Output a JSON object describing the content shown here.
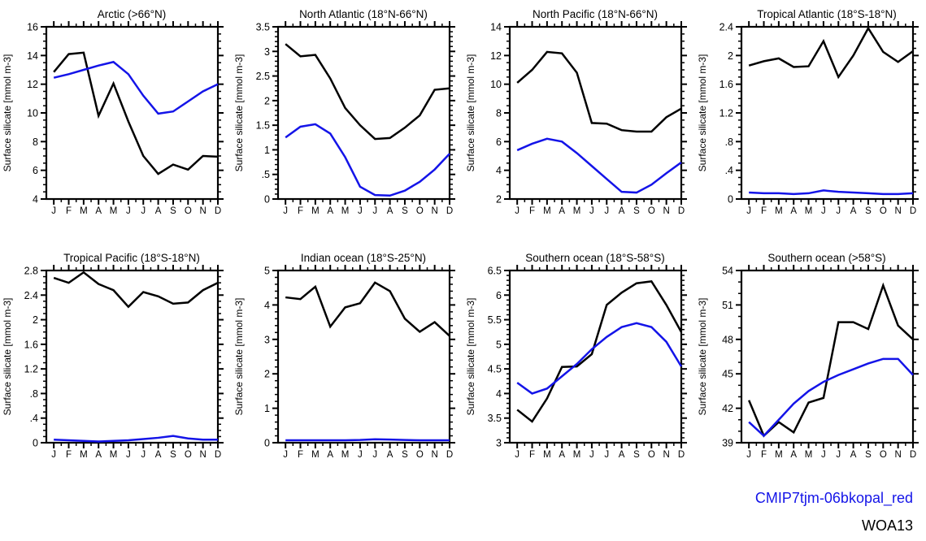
{
  "figure_title": "",
  "legend": {
    "position": "bottom-right",
    "entries": [
      {
        "label": "CMIP7tjm-06bkopal_red",
        "color": "#1414e8"
      },
      {
        "label": "WOA13",
        "color": "#000000"
      }
    ]
  },
  "months": [
    "J",
    "F",
    "M",
    "A",
    "M",
    "J",
    "J",
    "A",
    "S",
    "O",
    "N",
    "D"
  ],
  "chart_data": [
    {
      "type": "line",
      "title": "Arctic (>66°N)",
      "ylabel": "Surface silicate [mmol m-3]",
      "xlabel": "",
      "categories": [
        "J",
        "F",
        "M",
        "A",
        "M",
        "J",
        "J",
        "A",
        "S",
        "O",
        "N",
        "D"
      ],
      "ymin": 4,
      "ymax": 16,
      "ystep": 2,
      "yminor": 3,
      "ytick_labels": [
        "4",
        "6",
        "8",
        "10",
        "12",
        "14",
        "16"
      ],
      "grid": false,
      "series": [
        {
          "name": "WOA13",
          "color": "#000000",
          "values": [
            12.85,
            14.1,
            14.2,
            9.8,
            12.05,
            9.4,
            7.0,
            5.75,
            6.4,
            6.05,
            7.0,
            6.95
          ]
        },
        {
          "name": "CMIP7tjm-06bkopal_red",
          "color": "#1414e8",
          "values": [
            12.45,
            12.7,
            13.0,
            13.3,
            13.55,
            12.7,
            11.2,
            9.95,
            10.1,
            10.8,
            11.5,
            12.0
          ]
        }
      ]
    },
    {
      "type": "line",
      "title": "North Atlantic (18°N-66°N)",
      "ylabel": "Surface silicate [mmol m-3]",
      "xlabel": "",
      "categories": [
        "J",
        "F",
        "M",
        "A",
        "M",
        "J",
        "J",
        "A",
        "S",
        "O",
        "N",
        "D"
      ],
      "ymin": 0,
      "ymax": 3.5,
      "ystep": 0.5,
      "yminor": 4,
      "ytick_labels": [
        "0",
        ".5",
        "1",
        "1.5",
        "2",
        "2.5",
        "3",
        "3.5"
      ],
      "grid": false,
      "series": [
        {
          "name": "WOA13",
          "color": "#000000",
          "values": [
            3.15,
            2.9,
            2.93,
            2.45,
            1.85,
            1.5,
            1.22,
            1.24,
            1.45,
            1.7,
            2.22,
            2.25
          ]
        },
        {
          "name": "CMIP7tjm-06bkopal_red",
          "color": "#1414e8",
          "values": [
            1.25,
            1.47,
            1.52,
            1.33,
            0.85,
            0.25,
            0.08,
            0.07,
            0.17,
            0.35,
            0.6,
            0.92
          ]
        }
      ]
    },
    {
      "type": "line",
      "title": "North Pacific (18°N-66°N)",
      "ylabel": "Surface silicate [mmol m-3]",
      "xlabel": "",
      "categories": [
        "J",
        "F",
        "M",
        "A",
        "M",
        "J",
        "J",
        "A",
        "S",
        "O",
        "N",
        "D"
      ],
      "ymin": 2,
      "ymax": 14,
      "ystep": 2,
      "yminor": 3,
      "ytick_labels": [
        "2",
        "4",
        "6",
        "8",
        "10",
        "12",
        "14"
      ],
      "grid": false,
      "series": [
        {
          "name": "WOA13",
          "color": "#000000",
          "values": [
            10.1,
            11.0,
            12.25,
            12.15,
            10.8,
            7.3,
            7.25,
            6.8,
            6.7,
            6.7,
            7.7,
            8.3
          ]
        },
        {
          "name": "CMIP7tjm-06bkopal_red",
          "color": "#1414e8",
          "values": [
            5.4,
            5.85,
            6.2,
            6.0,
            5.2,
            4.3,
            3.4,
            2.5,
            2.45,
            3.0,
            3.8,
            4.55
          ]
        }
      ]
    },
    {
      "type": "line",
      "title": "Tropical Atlantic (18°S-18°N)",
      "ylabel": "Surface silicate [mmol m-3]",
      "xlabel": "",
      "categories": [
        "J",
        "F",
        "M",
        "A",
        "M",
        "J",
        "J",
        "A",
        "S",
        "O",
        "N",
        "D"
      ],
      "ymin": 0,
      "ymax": 2.4,
      "ystep": 0.4,
      "yminor": 3,
      "ytick_labels": [
        "0",
        ".4",
        ".8",
        "1.2",
        "1.6",
        "2",
        "2.4"
      ],
      "grid": false,
      "series": [
        {
          "name": "WOA13",
          "color": "#000000",
          "values": [
            1.86,
            1.92,
            1.96,
            1.84,
            1.85,
            2.2,
            1.7,
            2.0,
            2.38,
            2.05,
            1.91,
            2.06
          ]
        },
        {
          "name": "CMIP7tjm-06bkopal_red",
          "color": "#1414e8",
          "values": [
            0.09,
            0.08,
            0.08,
            0.07,
            0.08,
            0.12,
            0.1,
            0.09,
            0.08,
            0.07,
            0.07,
            0.08
          ]
        }
      ]
    },
    {
      "type": "line",
      "title": "Tropical Pacific (18°S-18°N)",
      "ylabel": "Surface silicate [mmol m-3]",
      "xlabel": "",
      "categories": [
        "J",
        "F",
        "M",
        "A",
        "M",
        "J",
        "J",
        "A",
        "S",
        "O",
        "N",
        "D"
      ],
      "ymin": 0,
      "ymax": 2.8,
      "ystep": 0.4,
      "yminor": 3,
      "ytick_labels": [
        "0",
        ".4",
        ".8",
        "1.2",
        "1.6",
        "2",
        "2.4",
        "2.8"
      ],
      "grid": false,
      "series": [
        {
          "name": "WOA13",
          "color": "#000000",
          "values": [
            2.68,
            2.6,
            2.77,
            2.58,
            2.48,
            2.21,
            2.45,
            2.38,
            2.26,
            2.28,
            2.48,
            2.6
          ]
        },
        {
          "name": "CMIP7tjm-06bkopal_red",
          "color": "#1414e8",
          "values": [
            0.05,
            0.04,
            0.03,
            0.02,
            0.03,
            0.04,
            0.06,
            0.08,
            0.11,
            0.07,
            0.05,
            0.05
          ]
        }
      ]
    },
    {
      "type": "line",
      "title": "Indian ocean (18°S-25°N)",
      "ylabel": "Surface silicate [mmol m-3]",
      "xlabel": "",
      "categories": [
        "J",
        "F",
        "M",
        "A",
        "M",
        "J",
        "J",
        "A",
        "S",
        "O",
        "N",
        "D"
      ],
      "ymin": 0,
      "ymax": 5,
      "ystep": 1,
      "yminor": 4,
      "ytick_labels": [
        "0",
        "1",
        "2",
        "3",
        "4",
        "5"
      ],
      "grid": false,
      "series": [
        {
          "name": "WOA13",
          "color": "#000000",
          "values": [
            4.22,
            4.17,
            4.53,
            3.37,
            3.93,
            4.05,
            4.65,
            4.4,
            3.6,
            3.22,
            3.5,
            3.1
          ]
        },
        {
          "name": "CMIP7tjm-06bkopal_red",
          "color": "#1414e8",
          "values": [
            0.07,
            0.07,
            0.07,
            0.07,
            0.07,
            0.08,
            0.1,
            0.09,
            0.08,
            0.07,
            0.07,
            0.07
          ]
        }
      ]
    },
    {
      "type": "line",
      "title": "Southern ocean (18°S-58°S)",
      "ylabel": "Surface silicate [mmol m-3]",
      "xlabel": "",
      "categories": [
        "J",
        "F",
        "M",
        "A",
        "M",
        "J",
        "J",
        "A",
        "S",
        "O",
        "N",
        "D"
      ],
      "ymin": 3,
      "ymax": 6.5,
      "ystep": 0.5,
      "yminor": 4,
      "ytick_labels": [
        "3",
        "3.5",
        "4",
        "4.5",
        "5",
        "5.5",
        "6",
        "6.5"
      ],
      "grid": false,
      "series": [
        {
          "name": "WOA13",
          "color": "#000000",
          "values": [
            3.67,
            3.43,
            3.9,
            4.54,
            4.55,
            4.8,
            5.8,
            6.05,
            6.24,
            6.28,
            5.8,
            5.25
          ]
        },
        {
          "name": "CMIP7tjm-06bkopal_red",
          "color": "#1414e8",
          "values": [
            4.22,
            4.0,
            4.1,
            4.35,
            4.6,
            4.9,
            5.15,
            5.35,
            5.43,
            5.35,
            5.05,
            4.55
          ]
        }
      ]
    },
    {
      "type": "line",
      "title": "Southern ocean (>58°S)",
      "ylabel": "Surface silicate [mmol m-3]",
      "xlabel": "",
      "categories": [
        "J",
        "F",
        "M",
        "A",
        "M",
        "J",
        "J",
        "A",
        "S",
        "O",
        "N",
        "D"
      ],
      "ymin": 39,
      "ymax": 54,
      "ystep": 3,
      "yminor": 2,
      "ytick_labels": [
        "39",
        "42",
        "45",
        "48",
        "51",
        "54"
      ],
      "grid": false,
      "series": [
        {
          "name": "WOA13",
          "color": "#000000",
          "values": [
            42.7,
            39.6,
            40.8,
            39.9,
            42.5,
            42.9,
            49.5,
            49.5,
            48.9,
            52.7,
            49.2,
            48.0
          ]
        },
        {
          "name": "CMIP7tjm-06bkopal_red",
          "color": "#1414e8",
          "values": [
            40.8,
            39.6,
            41.0,
            42.4,
            43.5,
            44.3,
            44.9,
            45.4,
            45.9,
            46.3,
            46.3,
            44.9
          ]
        }
      ]
    }
  ]
}
